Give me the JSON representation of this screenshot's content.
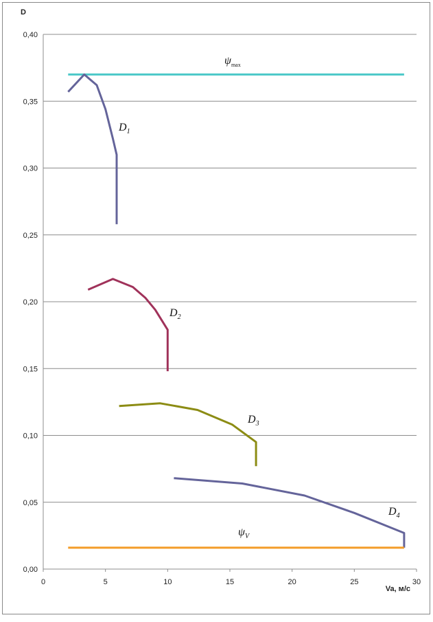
{
  "chart_data": {
    "type": "line",
    "ylabel": "D",
    "xlabel": "Va, м/с",
    "xlim": [
      0,
      30
    ],
    "ylim": [
      0,
      0.4
    ],
    "x_ticks": [
      "0",
      "5",
      "10",
      "15",
      "20",
      "25",
      "30"
    ],
    "y_ticks": [
      "0,00",
      "0,05",
      "0,10",
      "0,15",
      "0,20",
      "0,25",
      "0,30",
      "0,35",
      "0,40"
    ],
    "grid": "horizontal",
    "legend": "none",
    "series": [
      {
        "name": "ψmax",
        "label_main": "ψ",
        "label_sub": "max",
        "color": "#4BC8C8",
        "x": [
          2.0,
          29.0
        ],
        "y": [
          0.37,
          0.37
        ]
      },
      {
        "name": "D1",
        "label_main": "D",
        "label_sub": "1",
        "color": "#64649A",
        "x": [
          2.0,
          3.3,
          4.3,
          5.0,
          5.6,
          5.9,
          5.9
        ],
        "y": [
          0.357,
          0.37,
          0.362,
          0.344,
          0.322,
          0.31,
          0.258
        ]
      },
      {
        "name": "D2",
        "label_main": "D",
        "label_sub": "2",
        "color": "#A0325A",
        "x": [
          3.6,
          5.6,
          7.2,
          8.2,
          9.0,
          10.0,
          10.0
        ],
        "y": [
          0.209,
          0.217,
          0.211,
          0.203,
          0.194,
          0.179,
          0.148
        ]
      },
      {
        "name": "D3",
        "label_main": "D",
        "label_sub": "3",
        "color": "#8C8C14",
        "x": [
          6.1,
          9.4,
          12.4,
          15.2,
          17.1,
          17.1
        ],
        "y": [
          0.122,
          0.124,
          0.119,
          0.108,
          0.095,
          0.077
        ]
      },
      {
        "name": "D4",
        "label_main": "D",
        "label_sub": "4",
        "color": "#64649A",
        "x": [
          10.5,
          16.0,
          21.0,
          25.0,
          29.0,
          29.0
        ],
        "y": [
          0.068,
          0.064,
          0.055,
          0.042,
          0.027,
          0.016
        ]
      },
      {
        "name": "ψV",
        "label_main": "ψ",
        "label_sub": "V",
        "color": "#F39C28",
        "x": [
          2.0,
          29.0
        ],
        "y": [
          0.016,
          0.016
        ]
      }
    ]
  }
}
